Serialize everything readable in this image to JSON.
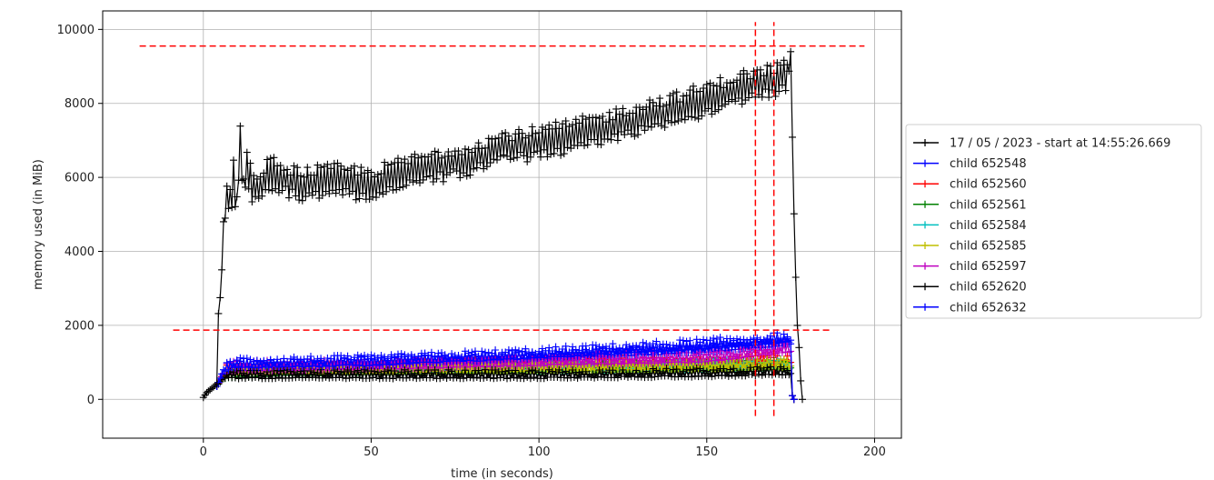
{
  "chart_data": {
    "type": "line",
    "title": "",
    "xlabel": "time (in seconds)",
    "ylabel": "memory used (in MiB)",
    "xlim": [
      -30,
      208
    ],
    "ylim": [
      -1050,
      10500
    ],
    "xticks": [
      0,
      50,
      100,
      150,
      200
    ],
    "yticks": [
      0,
      2000,
      4000,
      6000,
      8000,
      10000
    ],
    "grid": true,
    "legend_position": "right-outside",
    "series": [
      {
        "name": "17 / 05 / 2023 - start at 14:55:26.669",
        "color": "#000000",
        "keypoints": [
          [
            0,
            50
          ],
          [
            1,
            180
          ],
          [
            2,
            260
          ],
          [
            3,
            330
          ],
          [
            4,
            420
          ],
          [
            4.6,
            2700
          ],
          [
            5,
            2750
          ],
          [
            5.5,
            3500
          ],
          [
            6,
            4800
          ],
          [
            7,
            5500
          ],
          [
            8,
            5200
          ],
          [
            9,
            6000
          ],
          [
            10,
            5300
          ],
          [
            11,
            7000
          ],
          [
            12,
            5500
          ],
          [
            13,
            6300
          ],
          [
            15,
            5600
          ],
          [
            20,
            6100
          ],
          [
            25,
            5900
          ],
          [
            30,
            5800
          ],
          [
            40,
            5900
          ],
          [
            50,
            5800
          ],
          [
            60,
            6100
          ],
          [
            70,
            6300
          ],
          [
            80,
            6500
          ],
          [
            90,
            6800
          ],
          [
            100,
            6900
          ],
          [
            110,
            7100
          ],
          [
            120,
            7300
          ],
          [
            130,
            7600
          ],
          [
            140,
            7800
          ],
          [
            150,
            8100
          ],
          [
            160,
            8400
          ],
          [
            165,
            8500
          ],
          [
            170,
            8600
          ],
          [
            174,
            8800
          ],
          [
            175,
            9400
          ],
          [
            175.8,
            5700
          ],
          [
            176.5,
            3300
          ],
          [
            177,
            2000
          ],
          [
            177.5,
            1400
          ],
          [
            178,
            500
          ],
          [
            178.5,
            0
          ]
        ],
        "jitter": 900,
        "lower": 4900
      },
      {
        "name": "child 652548",
        "color": "#0000ff",
        "keypoints": [
          [
            4,
            350
          ],
          [
            6,
            700
          ],
          [
            10,
            850
          ],
          [
            50,
            950
          ],
          [
            100,
            1100
          ],
          [
            150,
            1300
          ],
          [
            175,
            1500
          ],
          [
            175.5,
            100
          ],
          [
            176,
            0
          ]
        ],
        "jitter": 200
      },
      {
        "name": "child 652560",
        "color": "#ff0000",
        "keypoints": [
          [
            4,
            350
          ],
          [
            6,
            700
          ],
          [
            10,
            800
          ],
          [
            50,
            850
          ],
          [
            100,
            900
          ],
          [
            150,
            950
          ],
          [
            175,
            1000
          ],
          [
            175.5,
            100
          ],
          [
            176,
            0
          ]
        ],
        "jitter": 200
      },
      {
        "name": "child 652561",
        "color": "#008000",
        "keypoints": [
          [
            4,
            350
          ],
          [
            6,
            600
          ],
          [
            10,
            650
          ],
          [
            50,
            700
          ],
          [
            100,
            750
          ],
          [
            150,
            800
          ],
          [
            175,
            850
          ],
          [
            175.5,
            100
          ],
          [
            176,
            0
          ]
        ],
        "jitter": 250
      },
      {
        "name": "child 652584",
        "color": "#00bfbf",
        "keypoints": [
          [
            4,
            350
          ],
          [
            6,
            650
          ],
          [
            10,
            700
          ],
          [
            50,
            750
          ],
          [
            100,
            800
          ],
          [
            150,
            850
          ],
          [
            175,
            900
          ],
          [
            175.5,
            100
          ],
          [
            176,
            0
          ]
        ],
        "jitter": 200
      },
      {
        "name": "child 652585",
        "color": "#bfbf00",
        "keypoints": [
          [
            4,
            350
          ],
          [
            6,
            650
          ],
          [
            10,
            700
          ],
          [
            50,
            750
          ],
          [
            100,
            800
          ],
          [
            150,
            850
          ],
          [
            175,
            900
          ],
          [
            175.5,
            100
          ],
          [
            176,
            0
          ]
        ],
        "jitter": 200
      },
      {
        "name": "child 652597",
        "color": "#bf00bf",
        "keypoints": [
          [
            4,
            350
          ],
          [
            6,
            700
          ],
          [
            10,
            800
          ],
          [
            50,
            850
          ],
          [
            100,
            950
          ],
          [
            150,
            1050
          ],
          [
            175,
            1300
          ],
          [
            175.5,
            100
          ],
          [
            176,
            0
          ]
        ],
        "jitter": 250
      },
      {
        "name": "child 652620",
        "color": "#000000",
        "keypoints": [
          [
            4,
            350
          ],
          [
            6,
            600
          ],
          [
            10,
            600
          ],
          [
            50,
            600
          ],
          [
            100,
            600
          ],
          [
            150,
            650
          ],
          [
            175,
            700
          ],
          [
            175.5,
            100
          ],
          [
            176,
            0
          ]
        ],
        "jitter": 200
      },
      {
        "name": "child 652632",
        "color": "#0000ff",
        "keypoints": [
          [
            4,
            350
          ],
          [
            6,
            800
          ],
          [
            10,
            900
          ],
          [
            50,
            950
          ],
          [
            100,
            1150
          ],
          [
            150,
            1400
          ],
          [
            165,
            1500
          ],
          [
            175,
            1600
          ],
          [
            175.5,
            100
          ],
          [
            176,
            0
          ]
        ],
        "jitter": 250
      }
    ],
    "reference_lines": [
      {
        "orientation": "horizontal",
        "y": 9550,
        "x_from": -19,
        "x_to": 197,
        "color": "#ff0000"
      },
      {
        "orientation": "horizontal",
        "y": 1870,
        "x_from": -9,
        "x_to": 187,
        "color": "#ff0000"
      },
      {
        "orientation": "vertical",
        "x": 164.5,
        "y_from": -450,
        "y_to": 10200,
        "color": "#ff0000"
      },
      {
        "orientation": "vertical",
        "x": 170,
        "y_from": -450,
        "y_to": 10200,
        "color": "#ff0000"
      }
    ]
  }
}
